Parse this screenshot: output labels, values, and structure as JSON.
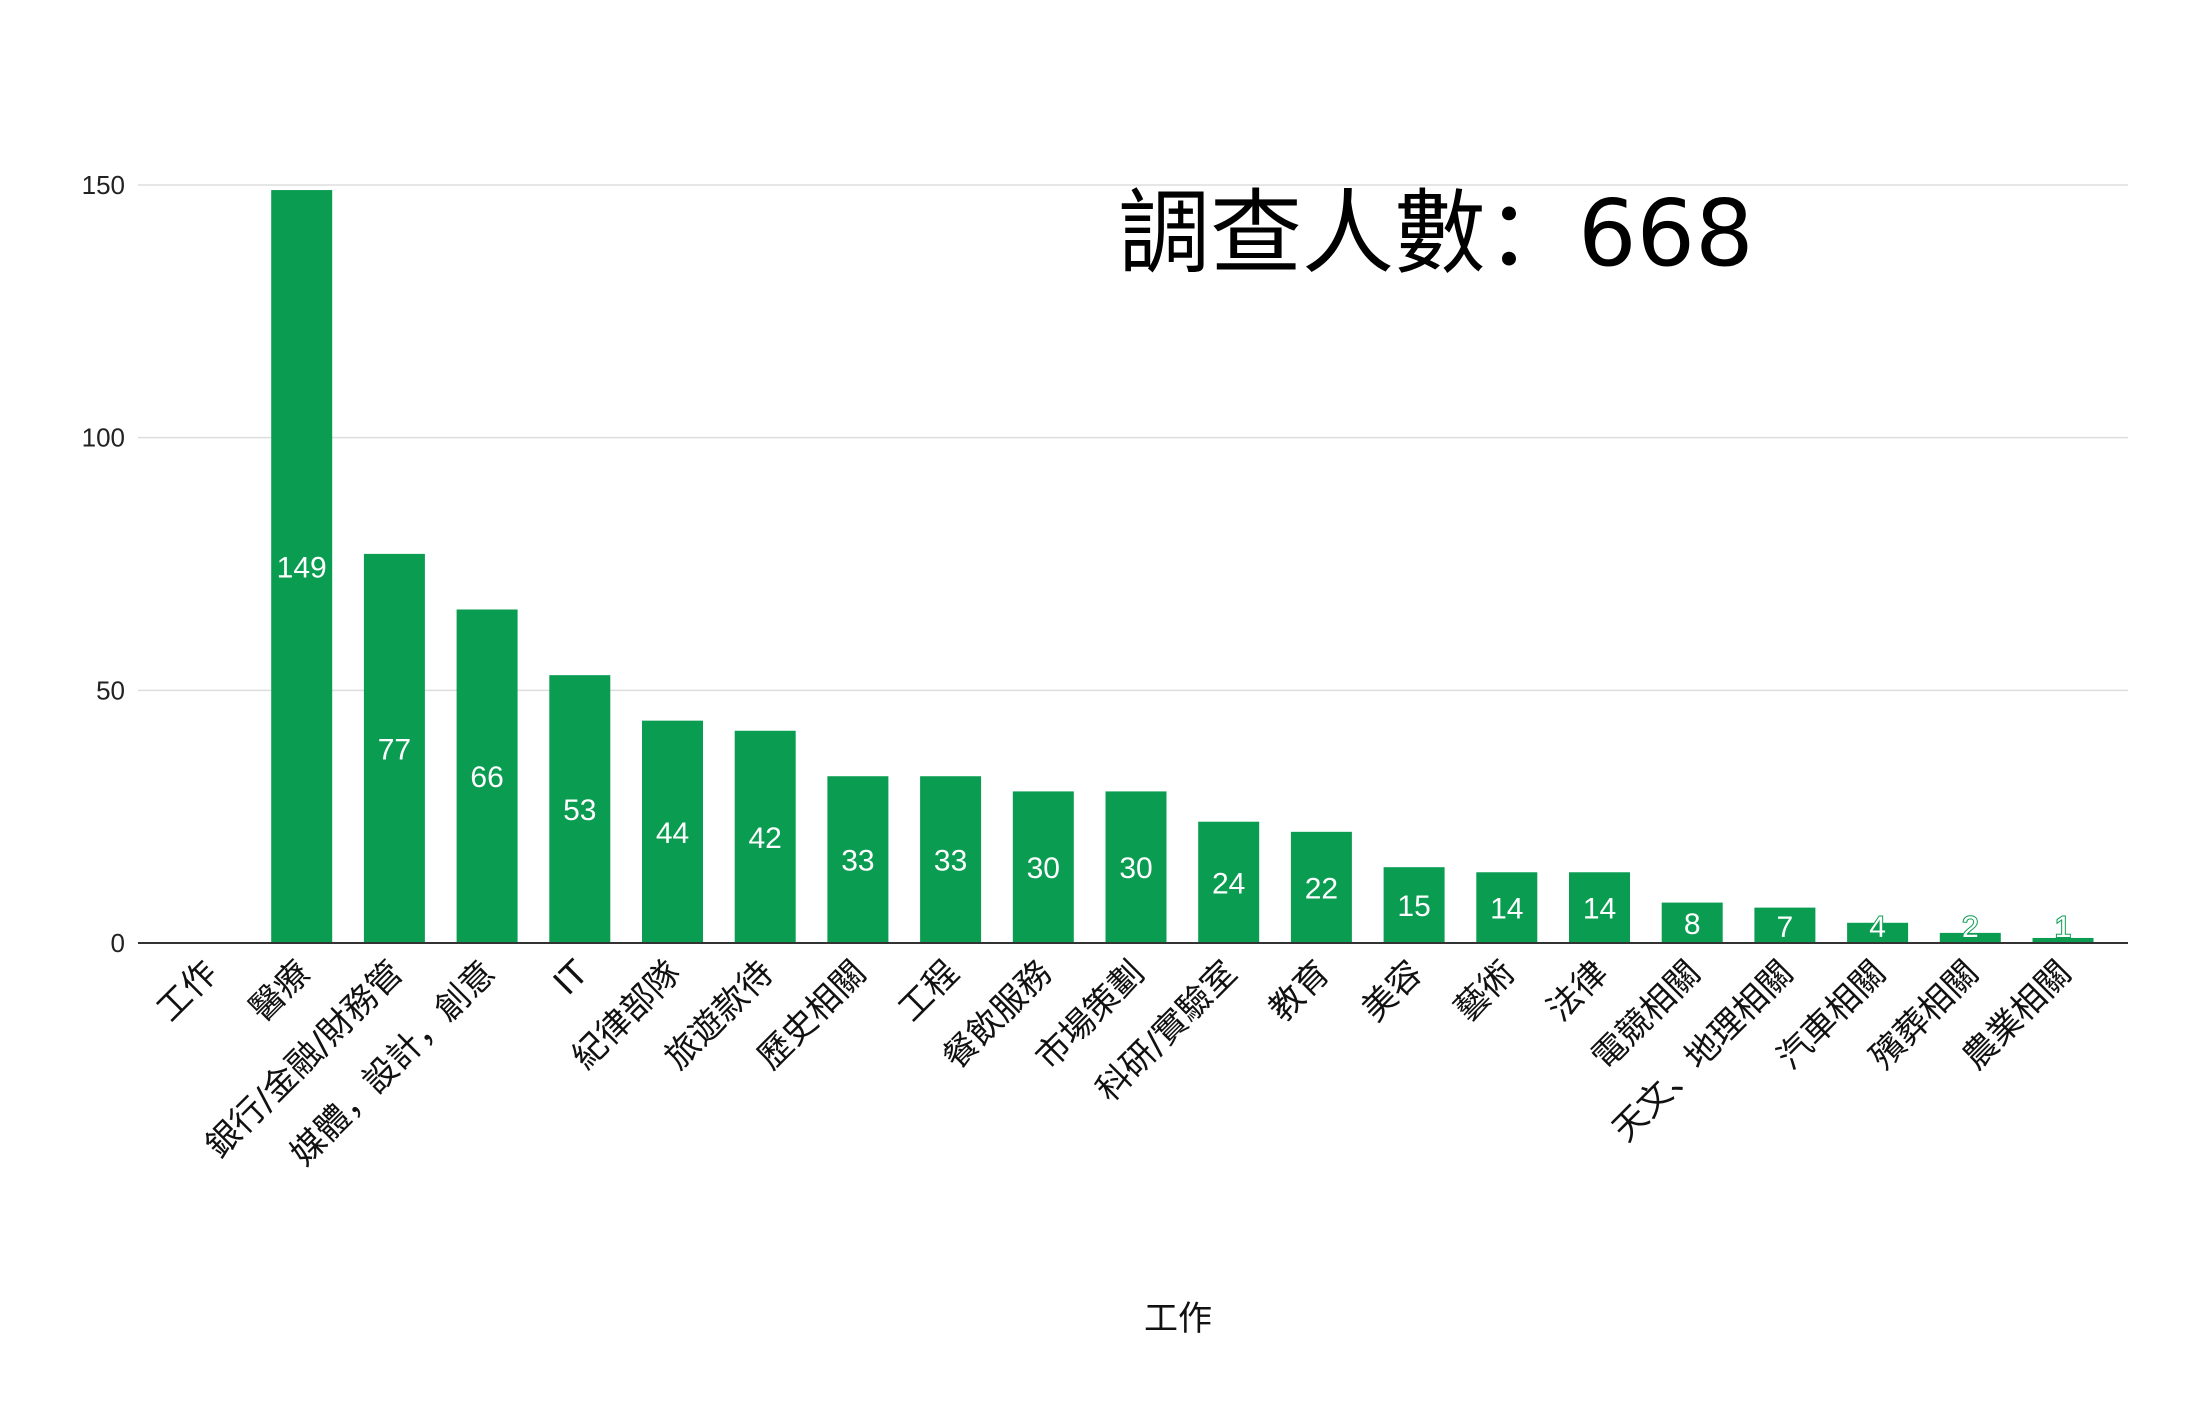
{
  "chart_data": {
    "type": "bar",
    "annotation": "調查人數：668",
    "xlabel": "工作",
    "ylabel": "",
    "ylim": [
      0,
      150
    ],
    "yticks": [
      0,
      50,
      100,
      150
    ],
    "grid": true,
    "legend": "none",
    "bar_color": "#0a9d52",
    "categories": [
      "工作",
      "醫療",
      "銀行/金融/財務管",
      "媒體，設計，創意",
      "IT",
      "紀律部隊",
      "旅遊款待",
      "歷史相關",
      "工程",
      "餐飲服務",
      "市場策劃",
      "科研/實驗室",
      "教育",
      "美容",
      "藝術",
      "法律",
      "電競相關",
      "天文、地理相關",
      "汽車相關",
      "殯葬相關",
      "農業相關"
    ],
    "values": [
      null,
      149,
      77,
      66,
      53,
      44,
      42,
      33,
      33,
      30,
      30,
      24,
      22,
      15,
      14,
      14,
      8,
      7,
      4,
      2,
      1
    ]
  }
}
